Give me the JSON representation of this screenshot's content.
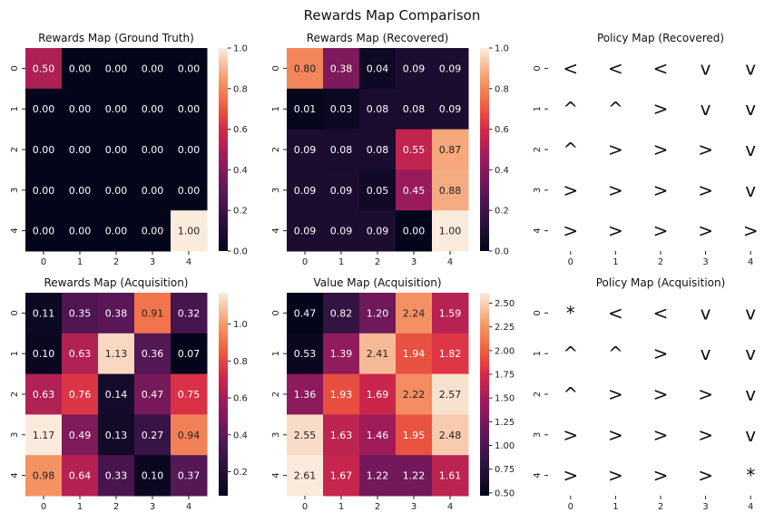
{
  "figure": {
    "title": "Rewards Map Comparison"
  },
  "chart_data": [
    {
      "type": "heatmap",
      "title": "Rewards Map (Ground Truth)",
      "x_ticks": [
        "0",
        "1",
        "2",
        "3",
        "4"
      ],
      "y_ticks": [
        "0",
        "1",
        "2",
        "3",
        "4"
      ],
      "values": [
        [
          0.5,
          0.0,
          0.0,
          0.0,
          0.0
        ],
        [
          0.0,
          0.0,
          0.0,
          0.0,
          0.0
        ],
        [
          0.0,
          0.0,
          0.0,
          0.0,
          0.0
        ],
        [
          0.0,
          0.0,
          0.0,
          0.0,
          0.0
        ],
        [
          0.0,
          0.0,
          0.0,
          0.0,
          1.0
        ]
      ],
      "labels": [
        [
          "0.50",
          "0.00",
          "0.00",
          "0.00",
          "0.00"
        ],
        [
          "0.00",
          "0.00",
          "0.00",
          "0.00",
          "0.00"
        ],
        [
          "0.00",
          "0.00",
          "0.00",
          "0.00",
          "0.00"
        ],
        [
          "0.00",
          "0.00",
          "0.00",
          "0.00",
          "0.00"
        ],
        [
          "0.00",
          "0.00",
          "0.00",
          "0.00",
          "1.00"
        ]
      ],
      "colorbar": {
        "range": [
          0,
          1.0
        ],
        "ticks": [
          0.0,
          0.2,
          0.4,
          0.6,
          0.8,
          1.0
        ],
        "tick_labels": [
          "0.0",
          "0.2",
          "0.4",
          "0.6",
          "0.8",
          "1.0"
        ]
      }
    },
    {
      "type": "heatmap",
      "title": "Rewards Map (Recovered)",
      "x_ticks": [
        "0",
        "1",
        "2",
        "3",
        "4"
      ],
      "y_ticks": [
        "0",
        "1",
        "2",
        "3",
        "4"
      ],
      "values": [
        [
          0.8,
          0.38,
          0.04,
          0.09,
          0.09
        ],
        [
          0.01,
          0.03,
          0.08,
          0.08,
          0.09
        ],
        [
          0.09,
          0.08,
          0.08,
          0.55,
          0.87
        ],
        [
          0.09,
          0.09,
          0.05,
          0.45,
          0.88
        ],
        [
          0.09,
          0.09,
          0.09,
          0.0,
          1.0
        ]
      ],
      "labels": [
        [
          "0.80",
          "0.38",
          "0.04",
          "0.09",
          "0.09"
        ],
        [
          "0.01",
          "0.03",
          "0.08",
          "0.08",
          "0.09"
        ],
        [
          "0.09",
          "0.08",
          "0.08",
          "0.55",
          "0.87"
        ],
        [
          "0.09",
          "0.09",
          "0.05",
          "0.45",
          "0.88"
        ],
        [
          "0.09",
          "0.09",
          "0.09",
          "0.00",
          "1.00"
        ]
      ],
      "colorbar": {
        "range": [
          0,
          1.0
        ],
        "ticks": [
          0.0,
          0.2,
          0.4,
          0.6,
          0.8,
          1.0
        ],
        "tick_labels": [
          "0.0",
          "0.2",
          "0.4",
          "0.6",
          "0.8",
          "1.0"
        ]
      }
    },
    {
      "type": "table",
      "title": "Policy Map (Recovered)",
      "x_ticks": [
        "0",
        "1",
        "2",
        "3",
        "4"
      ],
      "y_ticks": [
        "0",
        "1",
        "2",
        "3",
        "4"
      ],
      "symbols": [
        [
          "<",
          "<",
          "<",
          "v",
          "v"
        ],
        [
          "^",
          "^",
          ">",
          "v",
          "v"
        ],
        [
          "^",
          ">",
          ">",
          ">",
          "v"
        ],
        [
          ">",
          ">",
          ">",
          ">",
          "v"
        ],
        [
          ">",
          ">",
          ">",
          ">",
          ">"
        ]
      ]
    },
    {
      "type": "heatmap",
      "title": "Rewards Map (Acquisition)",
      "x_ticks": [
        "0",
        "1",
        "2",
        "3",
        "4"
      ],
      "y_ticks": [
        "0",
        "1",
        "2",
        "3",
        "4"
      ],
      "values": [
        [
          0.11,
          0.35,
          0.38,
          0.91,
          0.32
        ],
        [
          0.1,
          0.63,
          1.13,
          0.36,
          0.07
        ],
        [
          0.63,
          0.76,
          0.14,
          0.47,
          0.75
        ],
        [
          1.17,
          0.49,
          0.13,
          0.27,
          0.94
        ],
        [
          0.98,
          0.64,
          0.33,
          0.1,
          0.37
        ]
      ],
      "labels": [
        [
          "0.11",
          "0.35",
          "0.38",
          "0.91",
          "0.32"
        ],
        [
          "0.10",
          "0.63",
          "1.13",
          "0.36",
          "0.07"
        ],
        [
          "0.63",
          "0.76",
          "0.14",
          "0.47",
          "0.75"
        ],
        [
          "1.17",
          "0.49",
          "0.13",
          "0.27",
          "0.94"
        ],
        [
          "0.98",
          "0.64",
          "0.33",
          "0.10",
          "0.37"
        ]
      ],
      "colorbar": {
        "range": [
          0.07,
          1.17
        ],
        "ticks": [
          0.2,
          0.4,
          0.6,
          0.8,
          1.0
        ],
        "tick_labels": [
          "0.2",
          "0.4",
          "0.6",
          "0.8",
          "1.0"
        ]
      }
    },
    {
      "type": "heatmap",
      "title": "Value Map (Acquisition)",
      "x_ticks": [
        "0",
        "1",
        "2",
        "3",
        "4"
      ],
      "y_ticks": [
        "0",
        "1",
        "2",
        "3",
        "4"
      ],
      "values": [
        [
          0.47,
          0.82,
          1.2,
          2.24,
          1.59
        ],
        [
          0.53,
          1.39,
          2.41,
          1.94,
          1.82
        ],
        [
          1.36,
          1.93,
          1.69,
          2.22,
          2.57
        ],
        [
          2.55,
          1.63,
          1.46,
          1.95,
          2.48
        ],
        [
          2.61,
          1.67,
          1.22,
          1.22,
          1.61
        ]
      ],
      "labels": [
        [
          "0.47",
          "0.82",
          "1.20",
          "2.24",
          "1.59"
        ],
        [
          "0.53",
          "1.39",
          "2.41",
          "1.94",
          "1.82"
        ],
        [
          "1.36",
          "1.93",
          "1.69",
          "2.22",
          "2.57"
        ],
        [
          "2.55",
          "1.63",
          "1.46",
          "1.95",
          "2.48"
        ],
        [
          "2.61",
          "1.67",
          "1.22",
          "1.22",
          "1.61"
        ]
      ],
      "colorbar": {
        "range": [
          0.47,
          2.61
        ],
        "ticks": [
          0.5,
          0.75,
          1.0,
          1.25,
          1.5,
          1.75,
          2.0,
          2.25,
          2.5
        ],
        "tick_labels": [
          "0.50",
          "0.75",
          "1.00",
          "1.25",
          "1.50",
          "1.75",
          "2.00",
          "2.25",
          "2.50"
        ]
      }
    },
    {
      "type": "table",
      "title": "Policy Map (Acquisition)",
      "x_ticks": [
        "0",
        "1",
        "2",
        "3",
        "4"
      ],
      "y_ticks": [
        "0",
        "1",
        "2",
        "3",
        "4"
      ],
      "symbols": [
        [
          "*",
          "<",
          "<",
          "v",
          "v"
        ],
        [
          "^",
          "^",
          ">",
          "v",
          "v"
        ],
        [
          "^",
          ">",
          ">",
          ">",
          "v"
        ],
        [
          ">",
          ">",
          ">",
          ">",
          "v"
        ],
        [
          ">",
          ">",
          ">",
          ">",
          "*"
        ]
      ]
    }
  ]
}
